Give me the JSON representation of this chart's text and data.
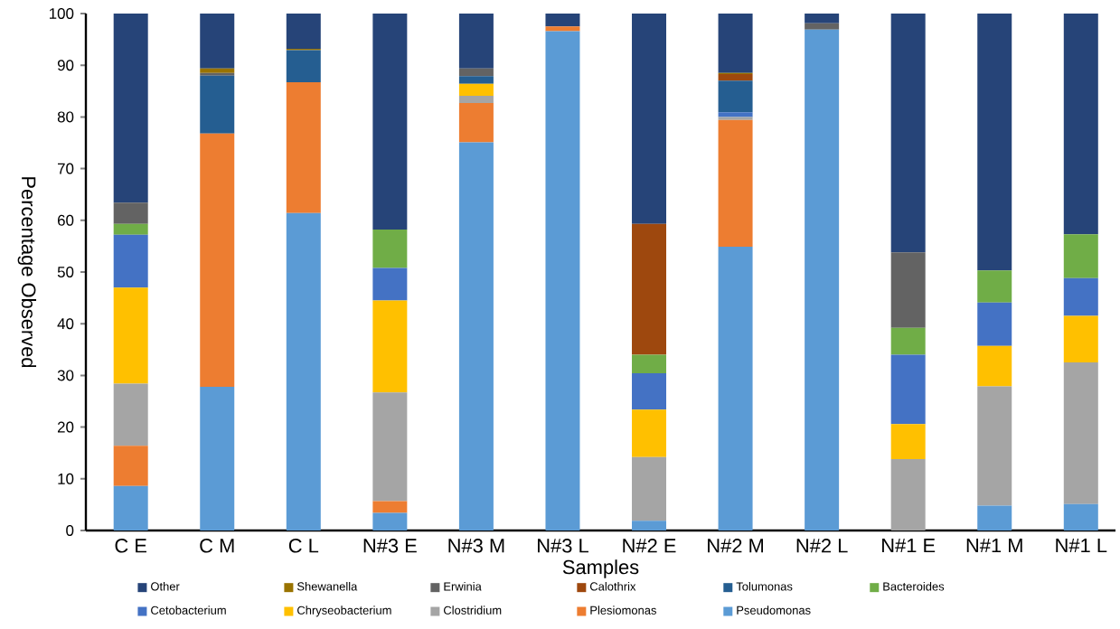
{
  "chart_data": {
    "type": "bar",
    "stacked": true,
    "xlabel": "Samples",
    "ylabel": "Percentage Observed",
    "categories": [
      "C E",
      "C M",
      "C L",
      "N#3 E",
      "N#3 M",
      "N#3 L",
      "N#2 E",
      "N#2 M",
      "N#2 L",
      "N#1 E",
      "N#1 M",
      "N#1 L"
    ],
    "ylim": [
      0,
      100
    ],
    "yticks": [
      0,
      10,
      20,
      30,
      40,
      50,
      60,
      70,
      80,
      90,
      100
    ],
    "grid": false,
    "legend": "bottom",
    "series": [
      {
        "name": "Pseudomonas",
        "color": "#5b9bd5",
        "values": [
          8.6,
          27.8,
          61.4,
          3.4,
          75.1,
          96.6,
          1.9,
          54.9,
          96.9,
          0,
          4.8,
          5.1
        ]
      },
      {
        "name": "Plesiomonas",
        "color": "#ed7d31",
        "values": [
          7.8,
          49.0,
          25.3,
          2.3,
          7.6,
          0.9,
          0,
          24.5,
          0,
          0,
          0,
          0
        ]
      },
      {
        "name": "Clostridium",
        "color": "#a5a5a5",
        "values": [
          12.0,
          0,
          0,
          21.0,
          1.4,
          0,
          12.3,
          0.6,
          0,
          13.8,
          23.1,
          27.4
        ]
      },
      {
        "name": "Chryseobacterium",
        "color": "#ffc000",
        "values": [
          18.6,
          0,
          0,
          17.8,
          2.3,
          0,
          9.2,
          0,
          0,
          6.8,
          7.8,
          9.0
        ]
      },
      {
        "name": "Cetobacterium",
        "color": "#4472c4",
        "values": [
          10.2,
          0,
          0,
          6.3,
          0,
          0,
          7.0,
          0.9,
          0,
          13.4,
          8.4,
          7.3
        ]
      },
      {
        "name": "Bacteroides",
        "color": "#70ad47",
        "values": [
          2.1,
          0,
          0,
          7.4,
          0,
          0,
          3.6,
          0,
          0,
          5.2,
          6.2,
          8.5
        ]
      },
      {
        "name": "Tolumonas",
        "color": "#255e91",
        "values": [
          0,
          11.2,
          6.2,
          0,
          1.5,
          0,
          0,
          6.1,
          0,
          0,
          0,
          0
        ]
      },
      {
        "name": "Calothrix",
        "color": "#9e480e",
        "values": [
          0,
          0,
          0,
          0,
          0,
          0,
          25.3,
          1.3,
          0,
          0,
          0,
          0
        ]
      },
      {
        "name": "Erwinia",
        "color": "#636363",
        "values": [
          4.1,
          0.5,
          0,
          0,
          1.5,
          0,
          0,
          0,
          1.2,
          14.6,
          0,
          0
        ]
      },
      {
        "name": "Shewanella",
        "color": "#997300",
        "values": [
          0,
          0.9,
          0.3,
          0,
          0,
          0,
          0,
          0.2,
          0,
          0,
          0,
          0
        ]
      },
      {
        "name": "Other",
        "color": "#264478",
        "values": [
          36.6,
          10.6,
          6.8,
          41.8,
          10.6,
          2.5,
          40.7,
          11.5,
          1.9,
          46.2,
          49.7,
          42.7
        ]
      }
    ]
  }
}
